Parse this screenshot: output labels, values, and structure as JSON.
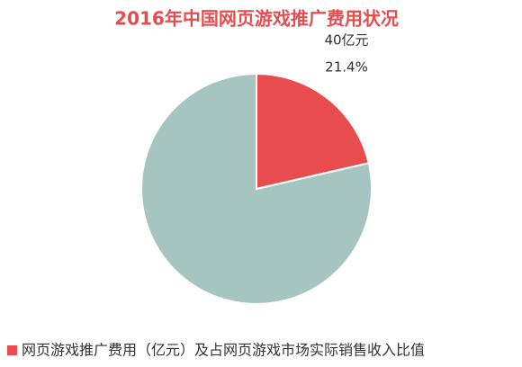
{
  "chart_data": {
    "type": "pie",
    "title": "2016年中国网页游戏推广费用状况",
    "annotations": [
      "40亿元"
    ],
    "series": [
      {
        "name": "网页游戏推广费用（亿元）及占网页游戏市场实际销售收入比值",
        "color": "#e84c4f",
        "colors": [
          "#e84c4f",
          "#a6c5c0"
        ],
        "values": [
          21.4,
          78.6
        ],
        "value_labels": [
          "21.4%",
          null
        ]
      }
    ],
    "legend": "bottom-left"
  }
}
